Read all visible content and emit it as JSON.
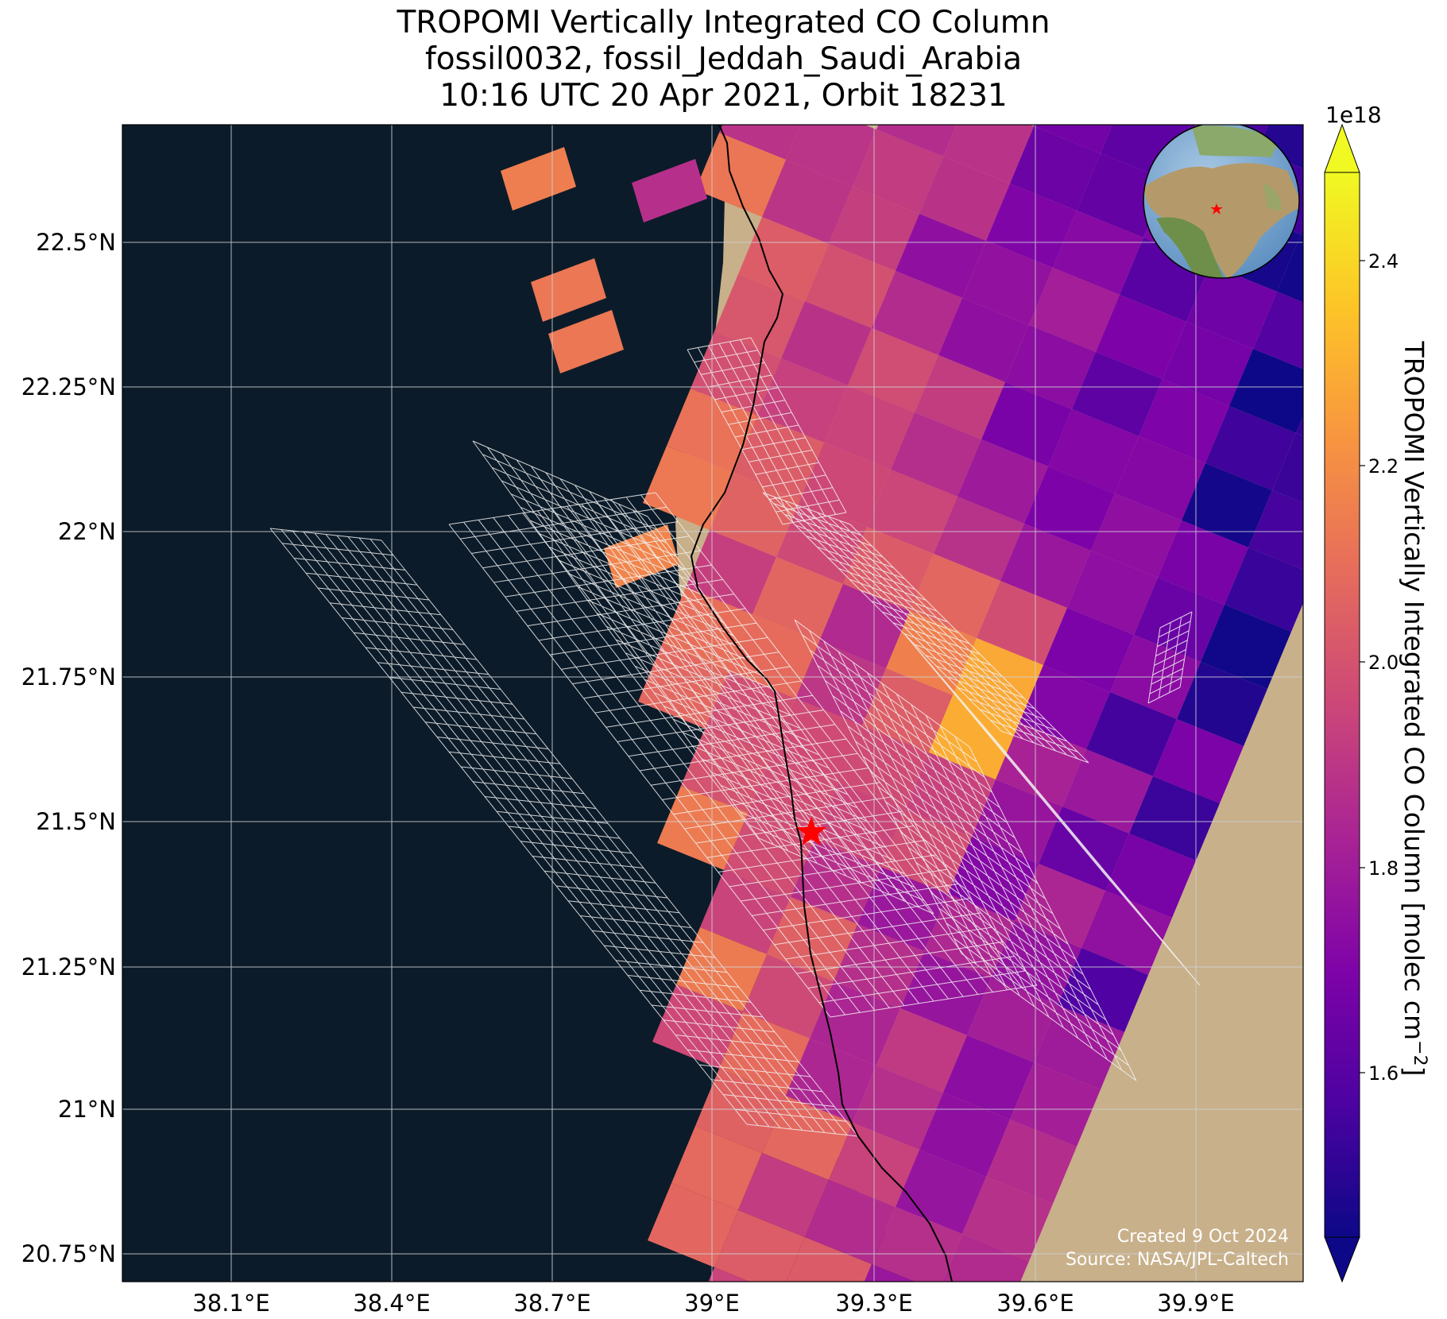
{
  "title": {
    "line1": "TROPOMI Vertically Integrated CO Column",
    "line2": "fossil0032, fossil_Jeddah_Saudi_Arabia",
    "line3": "10:16 UTC 20 Apr 2021, Orbit 18231"
  },
  "axes": {
    "lon_ticks": [
      "38.1°E",
      "38.4°E",
      "38.7°E",
      "39°E",
      "39.3°E",
      "39.6°E",
      "39.9°E"
    ],
    "lat_ticks": [
      "22.5°N",
      "22.25°N",
      "22°N",
      "21.75°N",
      "21.5°N",
      "21.25°N",
      "21°N",
      "20.75°N"
    ],
    "grid": true
  },
  "colorbar": {
    "label": "TROPOMI Vertically Integrated CO Column [molec cm",
    "label_sup": "−2",
    "label_end": "]",
    "multiplier": "1e18",
    "ticks": [
      "1.6",
      "1.8",
      "2.0",
      "2.2",
      "2.4"
    ],
    "colormap": "plasma",
    "extend": "both"
  },
  "credits": {
    "created": "Created 9 Oct 2024",
    "source": "Source: NASA/JPL-Caltech"
  },
  "site_marker": {
    "name": "Jeddah",
    "lon": 39.17,
    "lat": 21.48,
    "color": "#ff0000"
  },
  "colors": {
    "sea": "#0c1b29",
    "land": "#c8b08a",
    "grid": "#cfd3d6",
    "coastline": "#000000",
    "mesh": "#f3f3f3"
  }
}
